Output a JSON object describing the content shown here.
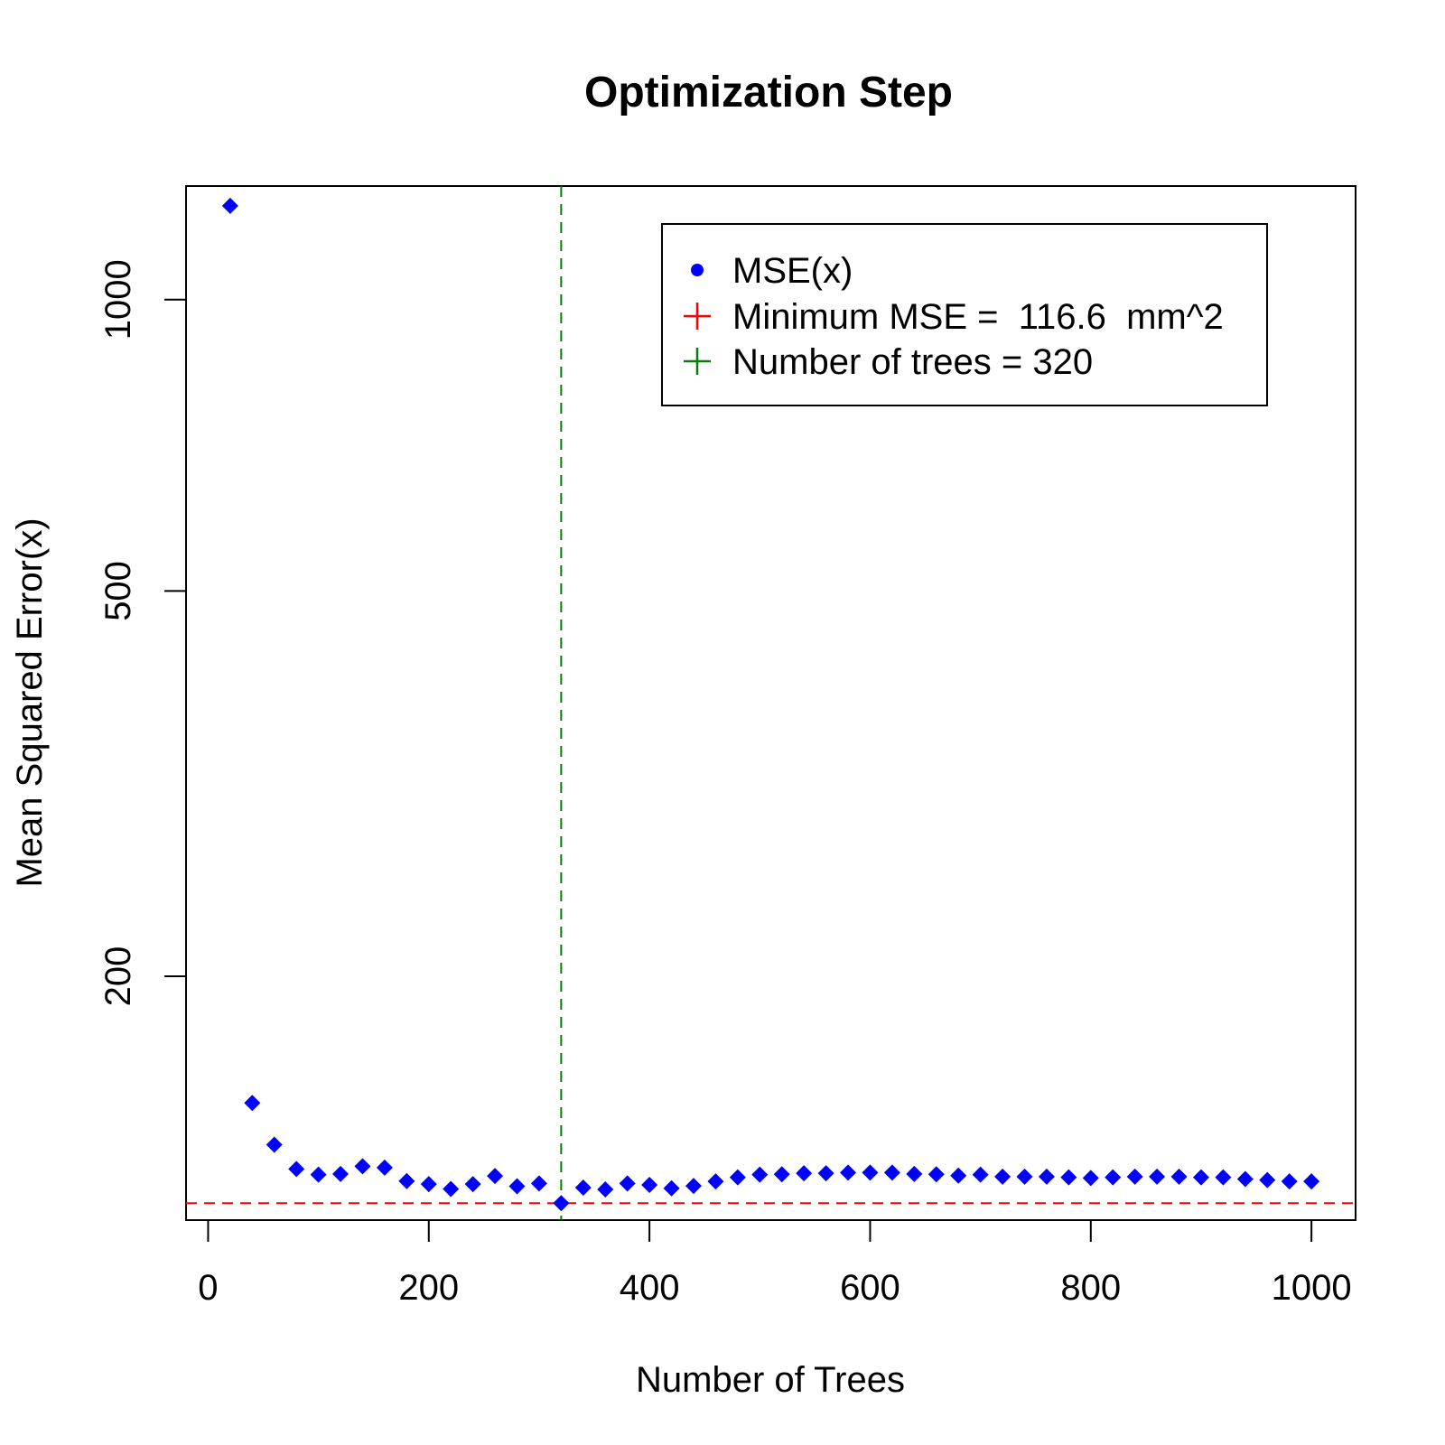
{
  "chart_data": {
    "type": "scatter",
    "title": "Optimization Step",
    "xlabel": "Number of Trees",
    "ylabel": "Mean Squared Error(x)",
    "y_scale": "log",
    "xlim": [
      -20,
      1040
    ],
    "ylim": [
      112,
      1310
    ],
    "x_ticks": [
      0,
      200,
      400,
      600,
      800,
      1000
    ],
    "x_tick_labels": [
      "0",
      "200",
      "400",
      "600",
      "800",
      "1000"
    ],
    "y_ticks": [
      200,
      500,
      1000
    ],
    "y_tick_labels": [
      "200",
      "500",
      "1000"
    ],
    "grid": false,
    "legend_position": "top-right",
    "series": [
      {
        "name": "MSE(x)",
        "color": "#0000ff",
        "marker": "diamond",
        "x": [
          20,
          40,
          60,
          80,
          100,
          120,
          140,
          160,
          180,
          200,
          220,
          240,
          260,
          280,
          300,
          320,
          340,
          360,
          380,
          400,
          420,
          440,
          460,
          480,
          500,
          520,
          540,
          560,
          580,
          600,
          620,
          640,
          660,
          680,
          700,
          720,
          740,
          760,
          780,
          800,
          820,
          840,
          860,
          880,
          900,
          920,
          940,
          960,
          980,
          1000
        ],
        "y": [
          1250,
          148,
          134,
          126.5,
          124.8,
          125.0,
          127.3,
          126.9,
          122.9,
          122.0,
          120.6,
          122.0,
          124.4,
          121.4,
          122.2,
          116.6,
          121.0,
          120.5,
          122.2,
          121.8,
          120.8,
          121.5,
          122.8,
          124.0,
          124.8,
          124.9,
          125.2,
          125.2,
          125.4,
          125.4,
          125.4,
          125.0,
          124.9,
          124.5,
          124.8,
          124.2,
          124.2,
          124.2,
          124.0,
          123.8,
          124.0,
          124.2,
          124.2,
          124.2,
          124.0,
          124.0,
          123.5,
          123.2,
          122.8,
          122.8
        ]
      }
    ],
    "reference_lines": [
      {
        "orientation": "horizontal",
        "value": 116.6,
        "color": "#ff0000",
        "style": "dashed"
      },
      {
        "orientation": "vertical",
        "value": 320,
        "color": "#008000",
        "style": "dashed"
      }
    ],
    "legend": [
      {
        "symbol": "dot",
        "color": "#0000ff",
        "label": "MSE(x)"
      },
      {
        "symbol": "plus",
        "color": "#ff0000",
        "label": "Minimum MSE =  116.6  mm^2"
      },
      {
        "symbol": "plus",
        "color": "#008000",
        "label": "Number of trees = 320"
      }
    ]
  }
}
